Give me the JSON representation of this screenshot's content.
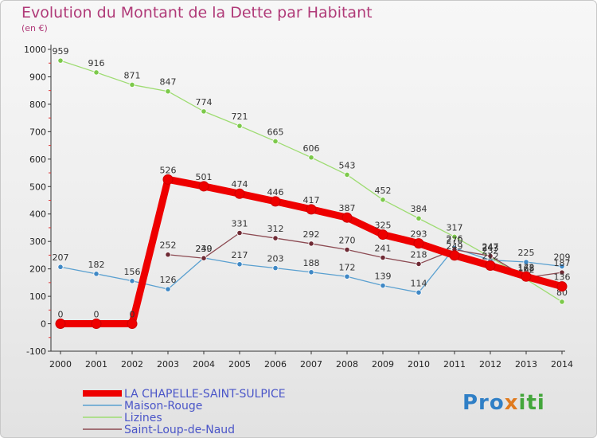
{
  "title": "Evolution du Montant de la Dette par Habitant",
  "unit": "(en €)",
  "logo": {
    "part1": "Pro",
    "part2": "x",
    "part3": "iti"
  },
  "colors": {
    "title": "#b03a78",
    "legend_text": "#4a55c8"
  },
  "chart_data": {
    "type": "line",
    "x": [
      "2000",
      "2001",
      "2002",
      "2003",
      "2004",
      "2005",
      "2006",
      "2007",
      "2008",
      "2009",
      "2010",
      "2011",
      "2012",
      "2013",
      "2014"
    ],
    "ylim": [
      -100,
      1000
    ],
    "yticks": [
      -100,
      0,
      100,
      200,
      300,
      400,
      500,
      600,
      700,
      800,
      900,
      1000
    ],
    "grid": false,
    "legend_position": "bottom-left",
    "series": [
      {
        "name": "Maison-Rouge",
        "color": "#5aa0d0",
        "marker": "#3f88c5",
        "values": [
          207,
          182,
          156,
          126,
          240,
          217,
          203,
          188,
          172,
          139,
          114,
          276,
          232,
          225,
          209
        ]
      },
      {
        "name": "Lizines",
        "color": "#9edc72",
        "marker": "#7cc94a",
        "values": [
          959,
          916,
          871,
          847,
          774,
          721,
          665,
          606,
          543,
          452,
          384,
          317,
          243,
          162,
          80
        ]
      },
      {
        "name": "Saint-Loup-de-Naud",
        "color": "#8c4a52",
        "marker": "#6e2a34",
        "values": [
          null,
          null,
          null,
          252,
          239,
          331,
          312,
          292,
          270,
          241,
          218,
          270,
          247,
          168,
          187
        ]
      },
      {
        "name": "LA CHAPELLE-SAINT-SULPICE",
        "color": "#ee0000",
        "marker": "#ee0000",
        "values": [
          0,
          0,
          0,
          526,
          501,
          474,
          446,
          417,
          387,
          325,
          293,
          249,
          212,
          172,
          136
        ]
      }
    ]
  }
}
